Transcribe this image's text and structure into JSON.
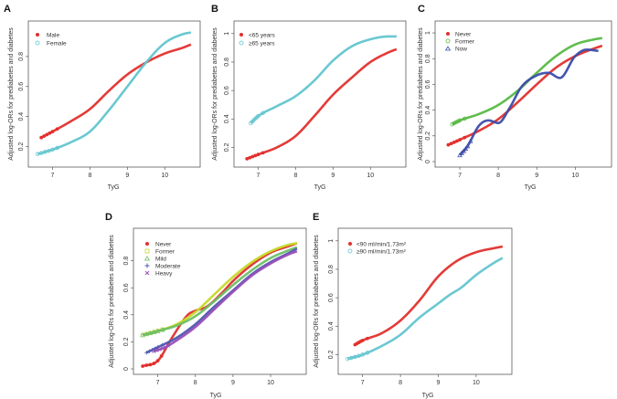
{
  "figure": {
    "panels": [
      {
        "letter": "A",
        "ylabel": "Adjusted log-ORs for prediabetes and diabetes",
        "xlabel": "TyG",
        "legend": [
          "Male",
          "Female"
        ]
      },
      {
        "letter": "B",
        "ylabel": "Adjusted log-ORs for prediabetes and diabetes",
        "xlabel": "TyG",
        "legend": [
          "<65 years",
          "≥65 years"
        ]
      },
      {
        "letter": "C",
        "ylabel": "Adjusted log-ORs for prediabetes and diabetes",
        "xlabel": "TyG",
        "legend": [
          "Never",
          "Former",
          "Now"
        ]
      },
      {
        "letter": "D",
        "ylabel": "Adjusted log-ORs for prediabetes and diabetes",
        "xlabel": "TyG",
        "legend": [
          "Never",
          "Former",
          "Mild",
          "Moderate",
          "Heavy"
        ]
      },
      {
        "letter": "E",
        "ylabel": "Adjusted log-ORs for prediabetes and diabetes",
        "xlabel": "TyG",
        "legend": [
          "<90 ml/min/1.73m²",
          "≥90 ml/min/1.73m²"
        ]
      }
    ]
  },
  "chart_data": [
    {
      "type": "line",
      "panel": "A",
      "title": "",
      "xlabel": "TyG",
      "ylabel": "Adjusted log-ORs for prediabetes and diabetes",
      "xlim": [
        6.5,
        10.8
      ],
      "ylim": [
        0.1,
        1.0
      ],
      "xticks": [
        7,
        8,
        9,
        10
      ],
      "yticks": [
        0.2,
        0.4,
        0.6,
        0.8
      ],
      "legend_position": "top-left",
      "series": [
        {
          "name": "Male",
          "color": "#e2302d",
          "marker": "dot",
          "x": [
            6.7,
            7.0,
            7.5,
            8.0,
            8.5,
            9.0,
            9.5,
            10.0,
            10.5,
            10.7
          ],
          "y": [
            0.26,
            0.3,
            0.37,
            0.45,
            0.57,
            0.68,
            0.76,
            0.82,
            0.86,
            0.88
          ]
        },
        {
          "name": "Female",
          "color": "#62c5cf",
          "marker": "open-circle",
          "x": [
            6.6,
            7.0,
            7.5,
            8.0,
            8.5,
            9.0,
            9.5,
            10.0,
            10.5,
            10.7
          ],
          "y": [
            0.15,
            0.18,
            0.23,
            0.3,
            0.44,
            0.6,
            0.76,
            0.89,
            0.95,
            0.96
          ]
        }
      ]
    },
    {
      "type": "line",
      "panel": "B",
      "title": "",
      "xlabel": "TyG",
      "ylabel": "Adjusted log-ORs for prediabetes and diabetes",
      "xlim": [
        6.5,
        10.8
      ],
      "ylim": [
        0.1,
        1.05
      ],
      "xticks": [
        7,
        8,
        9,
        10
      ],
      "yticks": [
        0.2,
        0.4,
        0.6,
        0.8,
        1.0
      ],
      "legend_position": "top-left",
      "series": [
        {
          "name": "<65 years",
          "color": "#e2302d",
          "marker": "dot",
          "x": [
            6.7,
            7.0,
            7.5,
            8.0,
            8.5,
            9.0,
            9.5,
            10.0,
            10.5,
            10.7
          ],
          "y": [
            0.12,
            0.15,
            0.2,
            0.28,
            0.42,
            0.57,
            0.69,
            0.8,
            0.87,
            0.89
          ]
        },
        {
          "name": "≥65 years",
          "color": "#62c5cf",
          "marker": "open-circle",
          "x": [
            6.8,
            7.0,
            7.5,
            8.0,
            8.5,
            9.0,
            9.5,
            10.0,
            10.5,
            10.7
          ],
          "y": [
            0.37,
            0.42,
            0.49,
            0.56,
            0.67,
            0.81,
            0.91,
            0.96,
            0.98,
            0.98
          ]
        }
      ]
    },
    {
      "type": "line",
      "panel": "C",
      "title": "",
      "xlabel": "TyG",
      "ylabel": "Adjusted log-ORs for prediabetes and diabetes",
      "xlim": [
        6.5,
        10.8
      ],
      "ylim": [
        0.0,
        1.05
      ],
      "xticks": [
        7,
        8,
        9,
        10
      ],
      "yticks": [
        0.0,
        0.2,
        0.4,
        0.6,
        0.8,
        1.0
      ],
      "legend_position": "top-left",
      "series": [
        {
          "name": "Never",
          "color": "#e2302d",
          "marker": "dot",
          "x": [
            6.7,
            7.0,
            7.5,
            8.0,
            8.5,
            9.0,
            9.5,
            10.0,
            10.5,
            10.7
          ],
          "y": [
            0.13,
            0.17,
            0.24,
            0.33,
            0.46,
            0.6,
            0.73,
            0.82,
            0.88,
            0.9
          ]
        },
        {
          "name": "Former",
          "color": "#59b944",
          "marker": "open-circle",
          "x": [
            6.8,
            7.0,
            7.5,
            8.0,
            8.5,
            9.0,
            9.5,
            10.0,
            10.5,
            10.7
          ],
          "y": [
            0.29,
            0.32,
            0.37,
            0.44,
            0.55,
            0.69,
            0.82,
            0.91,
            0.95,
            0.96
          ]
        },
        {
          "name": "Now",
          "color": "#3b4cab",
          "marker": "open-triangle",
          "x": [
            7.0,
            7.2,
            7.5,
            7.75,
            8.0,
            8.3,
            8.6,
            9.0,
            9.3,
            9.6,
            10.0,
            10.3,
            10.6
          ],
          "y": [
            0.05,
            0.12,
            0.28,
            0.32,
            0.3,
            0.42,
            0.58,
            0.67,
            0.69,
            0.65,
            0.82,
            0.87,
            0.86
          ]
        }
      ]
    },
    {
      "type": "line",
      "panel": "D",
      "title": "",
      "xlabel": "TyG",
      "ylabel": "Adjusted log-ORs for prediabetes and diabetes",
      "xlim": [
        6.5,
        10.8
      ],
      "ylim": [
        0.0,
        1.0
      ],
      "xticks": [
        7,
        8,
        9,
        10
      ],
      "yticks": [
        0.0,
        0.2,
        0.4,
        0.6,
        0.8
      ],
      "legend_position": "top-left",
      "series": [
        {
          "name": "Never",
          "color": "#e2302d",
          "marker": "dot",
          "x": [
            6.6,
            7.0,
            7.4,
            7.8,
            8.0,
            8.3,
            8.7,
            9.0,
            9.5,
            10.0,
            10.5,
            10.7
          ],
          "y": [
            0.02,
            0.06,
            0.24,
            0.4,
            0.43,
            0.46,
            0.56,
            0.65,
            0.77,
            0.86,
            0.91,
            0.93
          ]
        },
        {
          "name": "Former",
          "color": "#c6d92b",
          "marker": "open-square",
          "x": [
            6.6,
            7.0,
            7.5,
            8.0,
            8.5,
            9.0,
            9.5,
            10.0,
            10.5,
            10.7
          ],
          "y": [
            0.25,
            0.28,
            0.33,
            0.42,
            0.55,
            0.68,
            0.79,
            0.87,
            0.92,
            0.93
          ]
        },
        {
          "name": "Mild",
          "color": "#6fbf66",
          "marker": "open-triangle",
          "x": [
            6.6,
            7.0,
            7.5,
            8.0,
            8.5,
            9.0,
            9.5,
            10.0,
            10.5,
            10.7
          ],
          "y": [
            0.25,
            0.28,
            0.32,
            0.39,
            0.5,
            0.62,
            0.73,
            0.82,
            0.88,
            0.9
          ]
        },
        {
          "name": "Moderate",
          "color": "#4d5ab0",
          "marker": "plus",
          "x": [
            6.7,
            7.0,
            7.5,
            8.0,
            8.5,
            9.0,
            9.5,
            10.0,
            10.5,
            10.7
          ],
          "y": [
            0.12,
            0.16,
            0.23,
            0.33,
            0.46,
            0.58,
            0.7,
            0.79,
            0.86,
            0.89
          ]
        },
        {
          "name": "Heavy",
          "color": "#9a4fb8",
          "marker": "cross",
          "x": [
            6.9,
            7.2,
            7.5,
            8.0,
            8.5,
            9.0,
            9.5,
            10.0,
            10.5,
            10.7
          ],
          "y": [
            0.13,
            0.16,
            0.21,
            0.31,
            0.44,
            0.57,
            0.69,
            0.78,
            0.85,
            0.87
          ]
        }
      ]
    },
    {
      "type": "line",
      "panel": "E",
      "title": "",
      "xlabel": "TyG",
      "ylabel": "Adjusted log-ORs for prediabetes and diabetes",
      "xlim": [
        6.5,
        10.8
      ],
      "ylim": [
        0.1,
        1.05
      ],
      "xticks": [
        7,
        8,
        9,
        10
      ],
      "yticks": [
        0.2,
        0.4,
        0.6,
        0.8,
        1.0
      ],
      "legend_position": "top-left",
      "series": [
        {
          "name": "<90 ml/min/1.73m²",
          "color": "#e2302d",
          "marker": "dot",
          "x": [
            6.8,
            7.0,
            7.5,
            8.0,
            8.5,
            9.0,
            9.5,
            10.0,
            10.5,
            10.7
          ],
          "y": [
            0.27,
            0.3,
            0.35,
            0.44,
            0.58,
            0.75,
            0.86,
            0.92,
            0.95,
            0.96
          ]
        },
        {
          "name": "≥90 ml/min/1.73m²",
          "color": "#62c5cf",
          "marker": "open-circle",
          "x": [
            6.6,
            7.0,
            7.5,
            8.0,
            8.5,
            9.0,
            9.3,
            9.6,
            10.0,
            10.5,
            10.7
          ],
          "y": [
            0.17,
            0.2,
            0.26,
            0.34,
            0.46,
            0.56,
            0.62,
            0.67,
            0.76,
            0.85,
            0.88
          ]
        }
      ]
    }
  ]
}
